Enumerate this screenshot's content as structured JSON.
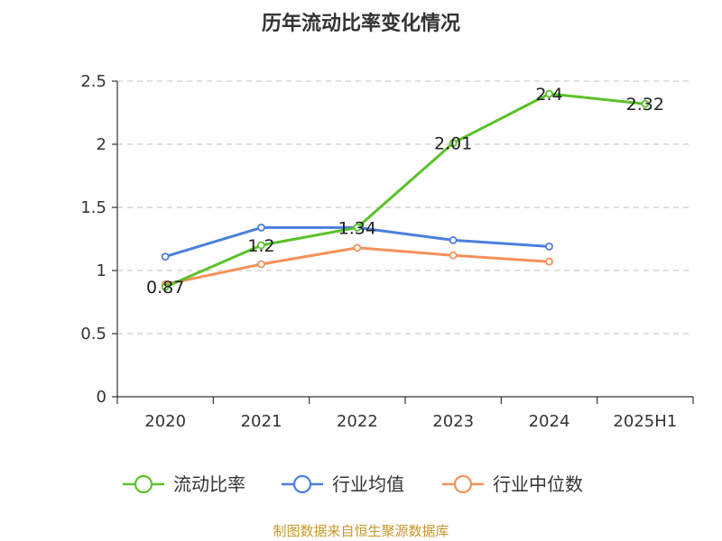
{
  "chart_data": {
    "type": "line",
    "title": "历年流动比率变化情况",
    "categories": [
      "2020",
      "2021",
      "2022",
      "2023",
      "2024",
      "2025H1"
    ],
    "ylim": [
      0,
      2.5
    ],
    "yticks": [
      "0",
      "0.5",
      "1",
      "1.5",
      "2",
      "2.5"
    ],
    "grid": true,
    "legend_position": "bottom",
    "series": [
      {
        "name": "流动比率",
        "color": "#5bc12a",
        "values": [
          0.87,
          1.2,
          1.34,
          2.01,
          2.4,
          2.32
        ],
        "labels": [
          "0.87",
          "1.2",
          "1.34",
          "2.01",
          "2.4",
          "2.32"
        ]
      },
      {
        "name": "行业均值",
        "color": "#4a7fde",
        "values": [
          1.11,
          1.34,
          1.34,
          1.24,
          1.19,
          null
        ]
      },
      {
        "name": "行业中位数",
        "color": "#f5915a",
        "values": [
          0.89,
          1.05,
          1.18,
          1.12,
          1.07,
          null
        ]
      }
    ]
  },
  "source_text": "制图数据来自恒生聚源数据库",
  "source_color": "#c8962a"
}
